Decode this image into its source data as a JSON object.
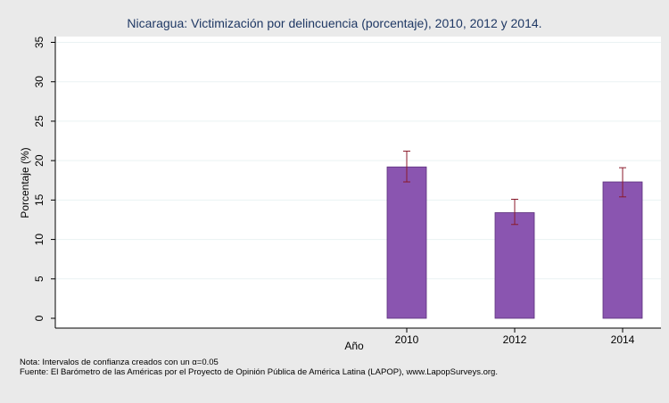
{
  "chart_data": {
    "type": "bar",
    "title": "Nicaragua: Victimización por delincuencia (porcentaje), 2010, 2012 y 2014.",
    "xlabel": "Año",
    "ylabel": "Porcentaje (%)",
    "ylim": [
      0,
      36
    ],
    "yticks": [
      0,
      5,
      10,
      15,
      20,
      25,
      30,
      35
    ],
    "grid": true,
    "categories": [
      "2010",
      "2012",
      "2014"
    ],
    "values": [
      19.2,
      13.4,
      17.3
    ],
    "ci_low": [
      17.3,
      11.9,
      15.4
    ],
    "ci_high": [
      21.2,
      15.1,
      19.1
    ],
    "bar_color": "#8a55b0",
    "errorbar_color": "#8b1a2b"
  },
  "notes": {
    "nota": "Nota: Intervalos de confianza creados con un α=0.05",
    "fuente": "Fuente: El Barómetro de las Américas por el Proyecto de Opinión Pública de América Latina (LAPOP), www.LapopSurveys.org."
  }
}
